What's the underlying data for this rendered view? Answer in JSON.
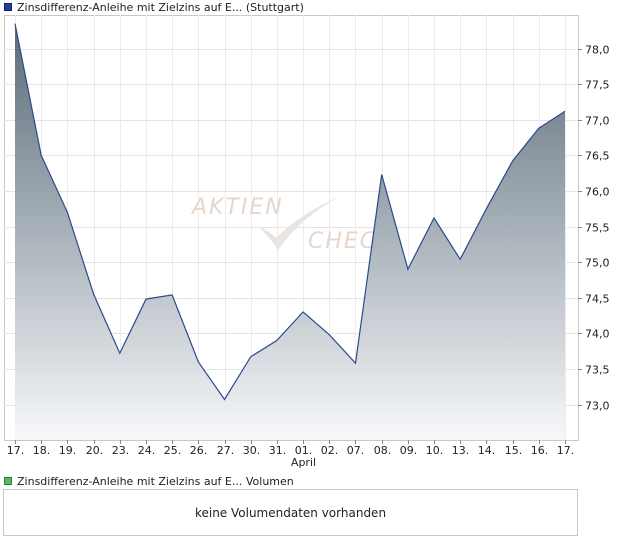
{
  "legend_price": {
    "label": "Zinsdifferenz-Anleihe mit Zielzins auf E...  (Stuttgart)",
    "color": "#1f3f9a"
  },
  "legend_volume": {
    "label": "Zinsdifferenz-Anleihe mit Zielzins auf E...  Volumen",
    "color": "#5cb85c"
  },
  "volume_message": "keine Volumendaten vorhanden",
  "watermark": {
    "line1": "AKTIEN",
    "line2": "CHECK"
  },
  "chart_data": {
    "type": "area",
    "x": [
      "17.",
      "18.",
      "19.",
      "20.",
      "23.",
      "24.",
      "25.",
      "26.",
      "27.",
      "30.",
      "31.",
      "01.",
      "02.",
      "07.",
      "08.",
      "09.",
      "10.",
      "13.",
      "14.",
      "15.",
      "16.",
      "17."
    ],
    "x_sublabel": {
      "index": 11,
      "text": "April"
    },
    "values": [
      78.35,
      76.5,
      75.7,
      74.55,
      73.72,
      74.48,
      74.54,
      73.6,
      73.07,
      73.67,
      73.9,
      74.3,
      73.98,
      73.58,
      76.23,
      74.9,
      75.62,
      75.04,
      75.75,
      76.42,
      76.88,
      77.12
    ],
    "y_ticks": [
      "73,0",
      "73,5",
      "74,0",
      "74,5",
      "75,0",
      "75,5",
      "76,0",
      "76,5",
      "77,0",
      "77,5",
      "78,0"
    ],
    "ylim": [
      72.5,
      78.5
    ],
    "grid": true,
    "line_color": "#2b4a8c",
    "fill_top_color": "#5a6b79",
    "fill_bottom_color": "#f7f8fa",
    "title": "",
    "xlabel": "",
    "ylabel": ""
  }
}
